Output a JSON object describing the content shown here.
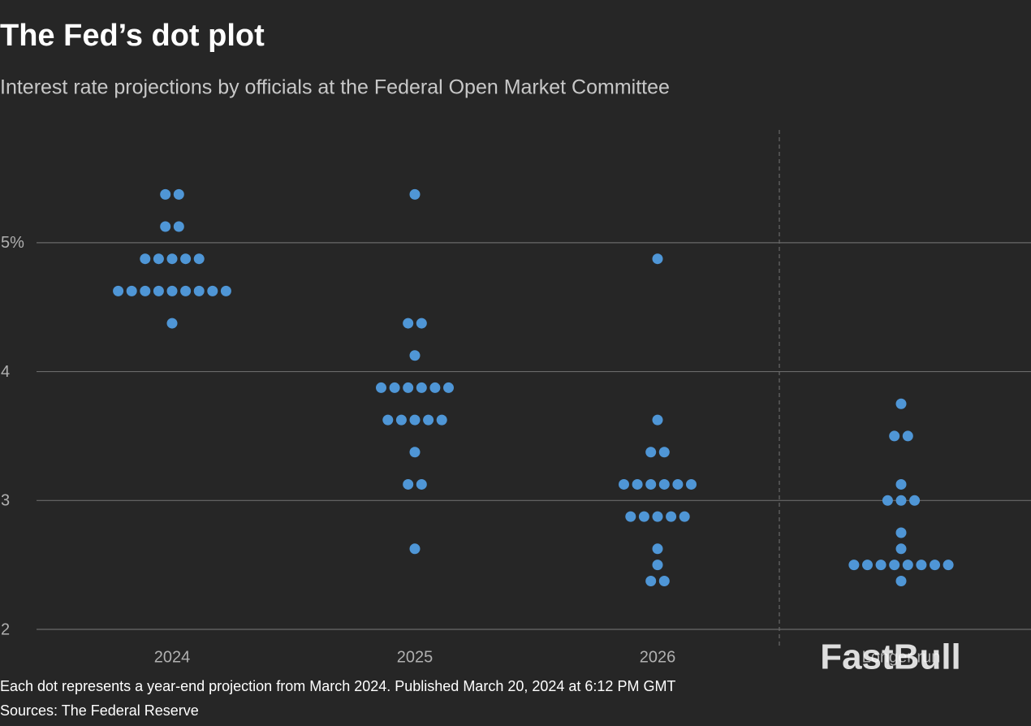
{
  "chart_data": {
    "type": "dot",
    "title": "The Fed’s dot plot",
    "subtitle": "Interest rate projections by officials at the Federal Open Market Committee",
    "categories": [
      "2024",
      "2025",
      "2026",
      "Longer run"
    ],
    "values": [
      [
        5.375,
        5.375,
        5.125,
        5.125,
        4.875,
        4.875,
        4.875,
        4.875,
        4.875,
        4.625,
        4.625,
        4.625,
        4.625,
        4.625,
        4.625,
        4.625,
        4.625,
        4.625,
        4.375
      ],
      [
        5.375,
        4.375,
        4.375,
        4.125,
        3.875,
        3.875,
        3.875,
        3.875,
        3.875,
        3.875,
        3.625,
        3.625,
        3.625,
        3.625,
        3.625,
        3.375,
        3.125,
        3.125,
        2.625
      ],
      [
        4.875,
        3.625,
        3.375,
        3.375,
        3.125,
        3.125,
        3.125,
        3.125,
        3.125,
        3.125,
        2.875,
        2.875,
        2.875,
        2.875,
        2.875,
        2.625,
        2.5,
        2.375,
        2.375
      ],
      [
        3.75,
        3.5,
        3.5,
        3.125,
        3.0,
        3.0,
        3.0,
        2.75,
        2.625,
        2.5,
        2.5,
        2.5,
        2.5,
        2.5,
        2.5,
        2.5,
        2.5,
        2.375
      ]
    ],
    "color": "#4f96d6",
    "ylim": [
      2,
      5.875
    ],
    "yticks": [
      2,
      3,
      4,
      {
        "value": 5,
        "label": "5%"
      }
    ],
    "grid": true,
    "note": "Each dot represents a year-end projection from March 2024. Published March 20, 2024 at 6:12 PM GMT",
    "source": "Sources: The Federal Reserve"
  },
  "watermark": "FastBull"
}
